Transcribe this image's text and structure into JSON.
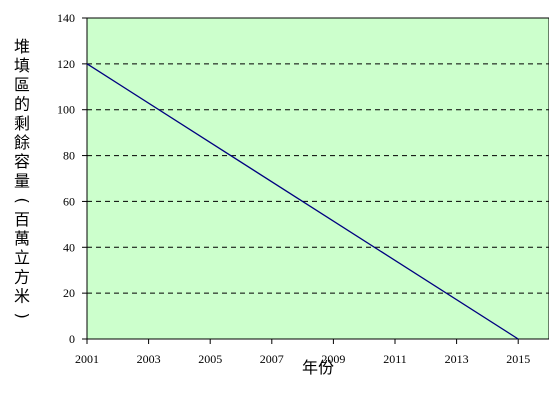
{
  "chart_data": {
    "type": "line",
    "title": "",
    "xlabel": "年份",
    "ylabel": "堆填區的剩餘容量(百萬立方米)",
    "x_tick_labels": [
      "2001",
      "2003",
      "2005",
      "2007",
      "2009",
      "2011",
      "2013",
      "2015"
    ],
    "y_tick_labels": [
      "0",
      "20",
      "40",
      "60",
      "80",
      "100",
      "120",
      "140"
    ],
    "xlim": [
      2001,
      2016
    ],
    "ylim": [
      0,
      140
    ],
    "grid": "horizontal dashed",
    "legend": "none",
    "series": [
      {
        "x": [
          2001,
          2015
        ],
        "y": [
          120,
          0
        ]
      }
    ],
    "colors": {
      "plot_background": "#ccffcc",
      "line": "#000080",
      "grid": "#000000"
    }
  }
}
